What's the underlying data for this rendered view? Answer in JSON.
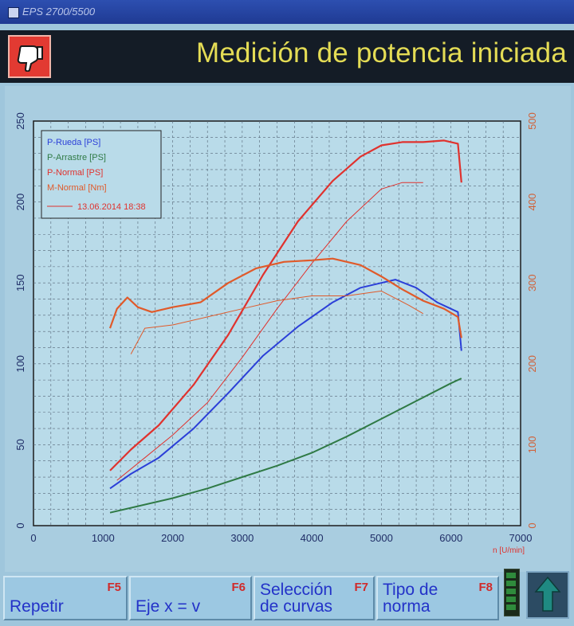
{
  "window": {
    "title": "EPS 2700/5500"
  },
  "header": {
    "title": "Medición de potencia iniciada"
  },
  "icons": {
    "thumb": "thumbs-down-icon",
    "arrow": "arrow-up-icon"
  },
  "colors": {
    "rueda": "#2b3fd8",
    "arrastre": "#2f7a45",
    "normal": "#e0322e",
    "m_normal": "#e05a2a"
  },
  "chart_data": {
    "type": "line",
    "xlabel": "n [U/min]",
    "xlim": [
      0,
      7000
    ],
    "ylim_left": [
      0,
      250
    ],
    "ylim_right": [
      0,
      500
    ],
    "x_ticks": [
      0,
      1000,
      2000,
      3000,
      4000,
      5000,
      6000,
      7000
    ],
    "y_ticks_left": [
      0,
      50,
      100,
      150,
      200,
      250
    ],
    "y_ticks_right": [
      0,
      100,
      200,
      300,
      400,
      500
    ],
    "grid": true,
    "legend_position": "top-left",
    "legend": [
      "P-Rueda [PS]",
      "P-Arrastre [PS]",
      "P-Normal [PS]",
      "M-Normal [Nm]",
      "13.06.2014 18:38"
    ],
    "series": [
      {
        "name": "P-Rueda [PS]",
        "axis": "left",
        "x": [
          1100,
          1400,
          1800,
          2300,
          2800,
          3300,
          3800,
          4300,
          4700,
          5000,
          5200,
          5500,
          5800,
          6100,
          6150
        ],
        "y": [
          23,
          32,
          42,
          60,
          82,
          105,
          123,
          138,
          147,
          150,
          152,
          147,
          138,
          132,
          108
        ]
      },
      {
        "name": "P-Arrastre [PS]",
        "axis": "left",
        "x": [
          1100,
          1500,
          2000,
          2500,
          3000,
          3500,
          4000,
          4500,
          5000,
          5500,
          6000,
          6150
        ],
        "y": [
          8,
          12,
          17,
          23,
          30,
          37,
          45,
          55,
          66,
          77,
          88,
          91
        ]
      },
      {
        "name": "P-Normal [PS]",
        "axis": "left",
        "x": [
          1100,
          1400,
          1800,
          2300,
          2800,
          3300,
          3800,
          4300,
          4700,
          5000,
          5300,
          5600,
          5900,
          6100,
          6150
        ],
        "y": [
          34,
          47,
          62,
          87,
          118,
          155,
          188,
          213,
          228,
          235,
          237,
          237,
          238,
          236,
          212
        ]
      },
      {
        "name": "P-Normal [PS] (13.06.2014 18:38)",
        "axis": "left",
        "x": [
          1200,
          1600,
          2000,
          2500,
          3000,
          3500,
          4000,
          4500,
          5000,
          5300,
          5600
        ],
        "y": [
          28,
          42,
          56,
          76,
          104,
          134,
          162,
          188,
          208,
          212,
          212
        ]
      },
      {
        "name": "M-Normal [Nm]",
        "axis": "right",
        "x": [
          1100,
          1200,
          1350,
          1500,
          1700,
          2000,
          2400,
          2800,
          3200,
          3600,
          4000,
          4300,
          4700,
          5000,
          5300,
          5600,
          5900,
          6100,
          6150
        ],
        "y": [
          244,
          268,
          282,
          270,
          264,
          270,
          276,
          300,
          318,
          326,
          328,
          330,
          322,
          308,
          292,
          278,
          268,
          258,
          232
        ]
      },
      {
        "name": "M-Normal [Nm] (13.06.2014 18:38)",
        "axis": "right",
        "x": [
          1400,
          1600,
          2000,
          2500,
          3000,
          3500,
          4000,
          4500,
          5000,
          5400,
          5600
        ],
        "y": [
          212,
          244,
          248,
          258,
          268,
          278,
          284,
          284,
          290,
          272,
          262
        ]
      }
    ]
  },
  "function_keys": [
    {
      "label": "Repetir",
      "key": "F5"
    },
    {
      "label": "Eje x = v",
      "key": "F6"
    },
    {
      "label": "Selección de curvas",
      "line1": "Selección",
      "line2": "de curvas",
      "key": "F7"
    },
    {
      "label": "Tipo de norma",
      "line1": "Tipo de",
      "line2": "norma",
      "key": "F8"
    }
  ]
}
